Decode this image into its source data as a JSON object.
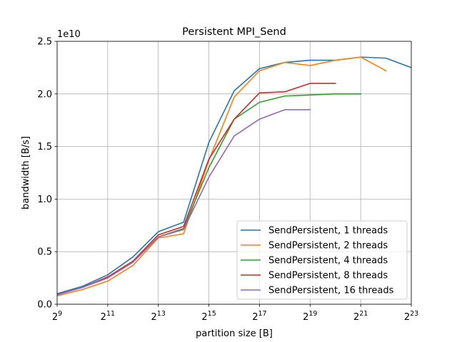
{
  "chart_data": {
    "type": "line",
    "title": "Persistent MPI_Send",
    "xlabel": "partition size [B]",
    "ylabel": "bandwidth [B/s]",
    "y_offset_label": "1e10",
    "xscale": "log2",
    "x_exponent_range": [
      9,
      23
    ],
    "x_tick_exponents": [
      9,
      11,
      13,
      15,
      17,
      19,
      21,
      23
    ],
    "x_tick_base": "2",
    "ylim": [
      0.0,
      2.5
    ],
    "y_ticks": [
      0.0,
      0.5,
      1.0,
      1.5,
      2.0,
      2.5
    ],
    "y_tick_labels": [
      "0.0",
      "0.5",
      "1.0",
      "1.5",
      "2.0",
      "2.5"
    ],
    "grid": true,
    "legend_position": "lower-right",
    "series": [
      {
        "name": "SendPersistent, 1 threads",
        "color": "#1f77b4",
        "x_exponents": [
          9,
          10,
          11,
          12,
          13,
          14,
          15,
          16,
          17,
          18,
          19,
          20,
          21,
          22,
          23
        ],
        "values": [
          0.1,
          0.17,
          0.28,
          0.45,
          0.69,
          0.78,
          1.54,
          2.03,
          2.24,
          2.3,
          2.32,
          2.32,
          2.35,
          2.34,
          2.25
        ]
      },
      {
        "name": "SendPersistent, 2 threads",
        "color": "#ff7f0e",
        "x_exponents": [
          9,
          10,
          11,
          12,
          13,
          14,
          15,
          16,
          17,
          18,
          19,
          20,
          21,
          22
        ],
        "values": [
          0.08,
          0.14,
          0.22,
          0.37,
          0.63,
          0.67,
          1.37,
          1.97,
          2.22,
          2.3,
          2.27,
          2.32,
          2.35,
          2.22
        ]
      },
      {
        "name": "SendPersistent, 4 threads",
        "color": "#2ca02c",
        "x_exponents": [
          9,
          10,
          11,
          12,
          13,
          14,
          15,
          16,
          17,
          18,
          19,
          20,
          21
        ],
        "values": [
          0.09,
          0.16,
          0.25,
          0.4,
          0.64,
          0.72,
          1.3,
          1.76,
          1.92,
          1.98,
          1.99,
          2.0,
          2.0
        ]
      },
      {
        "name": "SendPersistent, 8 threads",
        "color": "#d62728",
        "x_exponents": [
          9,
          10,
          11,
          12,
          13,
          14,
          15,
          16,
          17,
          18,
          19,
          20
        ],
        "values": [
          0.09,
          0.16,
          0.26,
          0.41,
          0.66,
          0.74,
          1.38,
          1.76,
          2.01,
          2.02,
          2.1,
          2.1
        ]
      },
      {
        "name": "SendPersistent, 16 threads",
        "color": "#9467bd",
        "x_exponents": [
          9,
          10,
          11,
          12,
          13,
          14,
          15,
          16,
          17,
          18,
          19
        ],
        "values": [
          0.09,
          0.16,
          0.25,
          0.4,
          0.64,
          0.71,
          1.21,
          1.6,
          1.76,
          1.85,
          1.85
        ]
      }
    ]
  }
}
